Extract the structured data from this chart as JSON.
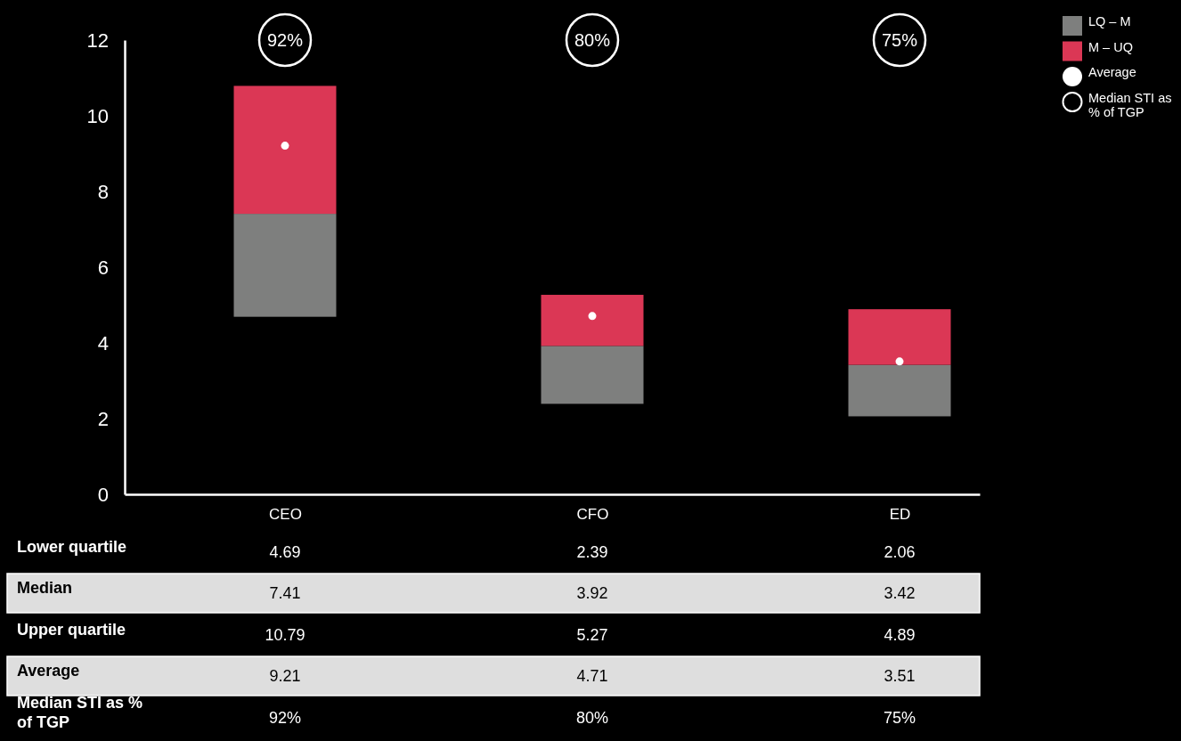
{
  "chart_data": {
    "type": "bar",
    "categories": [
      "CEO",
      "CFO",
      "ED"
    ],
    "series": [
      {
        "name": "LQ – M",
        "color": "#7e7f7e",
        "base": [
          4.69,
          2.39,
          2.06
        ],
        "values": [
          2.72,
          1.53,
          1.36
        ]
      },
      {
        "name": "M – UQ",
        "color": "#db3755",
        "base": [
          7.41,
          3.92,
          3.42
        ],
        "values": [
          3.38,
          1.35,
          1.47
        ]
      },
      {
        "name": "Average",
        "type": "scatter",
        "color": "#ffffff",
        "x": [
          "CEO",
          "CFO",
          "ED"
        ],
        "values": [
          9.21,
          4.71,
          3.51
        ]
      }
    ],
    "ylim": [
      0,
      12
    ],
    "yticks": [
      0,
      2,
      4,
      6,
      8,
      10,
      12
    ],
    "legend": "top right",
    "marker": "circle",
    "annotations": [
      "92%",
      "80%",
      "75%",
      "Lower quartile",
      "4.69",
      "2.39",
      "2.06",
      "Median",
      "7.41",
      "3.92",
      "3.42",
      "Upper quartile",
      "10.79",
      "5.27",
      "4.89",
      "Average",
      "9.21",
      "4.71",
      "3.51",
      "Median STI as % of TGP",
      "92%",
      "80%",
      "75%"
    ]
  }
}
